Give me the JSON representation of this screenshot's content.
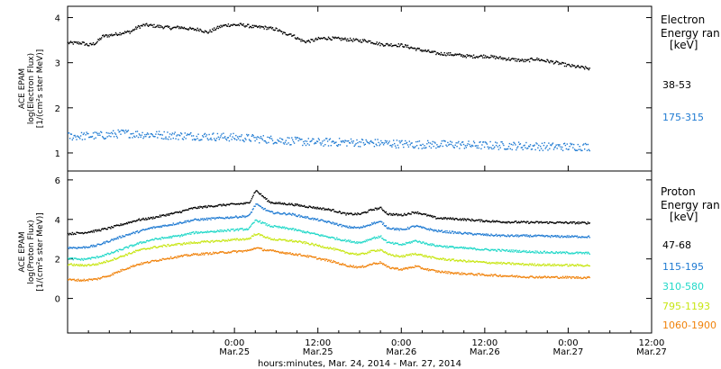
{
  "chart_data": [
    {
      "type": "scatter",
      "panel": "electron",
      "ylabel_lines": [
        "ACE EPAM",
        "log(Electron Flux)",
        "[1/(cm²s ster MeV)]"
      ],
      "ylim": [
        0.6,
        4.25
      ],
      "yticks": [
        1,
        2,
        3,
        4
      ],
      "legend_title": [
        "Electron",
        "Energy ran",
        "[keV]"
      ],
      "x_hours_since_mar24_0000": [
        0,
        84
      ],
      "series": [
        {
          "name": "38-53",
          "color": "#000000",
          "t_start_h": 0,
          "t_end_h": 75,
          "knots": [
            [
              0,
              3.45
            ],
            [
              2,
              3.45
            ],
            [
              3,
              3.4
            ],
            [
              4,
              3.45
            ],
            [
              5,
              3.6
            ],
            [
              6,
              3.62
            ],
            [
              8,
              3.68
            ],
            [
              9,
              3.7
            ],
            [
              10,
              3.8
            ],
            [
              11,
              3.85
            ],
            [
              14,
              3.8
            ],
            [
              15,
              3.78
            ],
            [
              16,
              3.8
            ],
            [
              18,
              3.75
            ],
            [
              19,
              3.75
            ],
            [
              20,
              3.68
            ],
            [
              21,
              3.75
            ],
            [
              22,
              3.82
            ],
            [
              23,
              3.85
            ],
            [
              25,
              3.85
            ],
            [
              27,
              3.8
            ],
            [
              28,
              3.8
            ],
            [
              30,
              3.75
            ],
            [
              31,
              3.66
            ],
            [
              32,
              3.65
            ],
            [
              33,
              3.55
            ],
            [
              34,
              3.48
            ],
            [
              35,
              3.5
            ],
            [
              36,
              3.54
            ],
            [
              37,
              3.56
            ],
            [
              40,
              3.53
            ],
            [
              42,
              3.5
            ],
            [
              43,
              3.5
            ],
            [
              45,
              3.42
            ],
            [
              48,
              3.4
            ],
            [
              50,
              3.32
            ],
            [
              53,
              3.22
            ],
            [
              55,
              3.2
            ],
            [
              58,
              3.15
            ],
            [
              60,
              3.16
            ],
            [
              63,
              3.1
            ],
            [
              66,
              3.05
            ],
            [
              67,
              3.1
            ],
            [
              70,
              3.02
            ],
            [
              72,
              2.95
            ],
            [
              75,
              2.88
            ]
          ],
          "scatter": 0.035
        },
        {
          "name": "175-315",
          "color": "#1e7ad2",
          "t_start_h": 0,
          "t_end_h": 75,
          "knots": [
            [
              0,
              1.38
            ],
            [
              5,
              1.4
            ],
            [
              8,
              1.45
            ],
            [
              10,
              1.43
            ],
            [
              15,
              1.4
            ],
            [
              20,
              1.38
            ],
            [
              25,
              1.35
            ],
            [
              30,
              1.3
            ],
            [
              35,
              1.25
            ],
            [
              40,
              1.25
            ],
            [
              45,
              1.23
            ],
            [
              50,
              1.2
            ],
            [
              55,
              1.2
            ],
            [
              60,
              1.18
            ],
            [
              65,
              1.17
            ],
            [
              70,
              1.15
            ],
            [
              75,
              1.15
            ]
          ],
          "scatter": 0.09
        }
      ]
    },
    {
      "type": "scatter",
      "panel": "proton",
      "ylabel_lines": [
        "ACE EPAM",
        "log(Proton Flux)",
        "[1/(cm²s ster MeV)]"
      ],
      "ylim": [
        -1.75,
        6.45
      ],
      "yticks": [
        0,
        2,
        4,
        6
      ],
      "legend_title": [
        "Proton",
        "Energy ran",
        "[keV]"
      ],
      "xtick_labels": [
        [
          "0:00",
          "Mar.25"
        ],
        [
          "12:00",
          "Mar.25"
        ],
        [
          "0:00",
          "Mar.26"
        ],
        [
          "12:00",
          "Mar.26"
        ],
        [
          "0:00",
          "Mar.27"
        ],
        [
          "12:00",
          "Mar.27"
        ]
      ],
      "xtick_hours": [
        24,
        36,
        48,
        60,
        72,
        84
      ],
      "xlabel": "hours:minutes, Mar. 24, 2014 - Mar. 27, 2014",
      "x_hours_since_mar24_0000": [
        0,
        84
      ],
      "series": [
        {
          "name": "47-68",
          "color": "#000000",
          "t_start_h": 0,
          "t_end_h": 75,
          "knots": [
            [
              0,
              3.3
            ],
            [
              2,
              3.35
            ],
            [
              4,
              3.45
            ],
            [
              6,
              3.6
            ],
            [
              8,
              3.8
            ],
            [
              10,
              4.0
            ],
            [
              12,
              4.1
            ],
            [
              14,
              4.25
            ],
            [
              16,
              4.4
            ],
            [
              18,
              4.6
            ],
            [
              20,
              4.68
            ],
            [
              22,
              4.75
            ],
            [
              24,
              4.8
            ],
            [
              26,
              4.85
            ],
            [
              27,
              5.5
            ],
            [
              28,
              5.2
            ],
            [
              29,
              4.9
            ],
            [
              30,
              4.85
            ],
            [
              32,
              4.8
            ],
            [
              34,
              4.7
            ],
            [
              36,
              4.6
            ],
            [
              38,
              4.5
            ],
            [
              40,
              4.3
            ],
            [
              42,
              4.3
            ],
            [
              44,
              4.55
            ],
            [
              45,
              4.6
            ],
            [
              46,
              4.3
            ],
            [
              48,
              4.25
            ],
            [
              50,
              4.4
            ],
            [
              51,
              4.3
            ],
            [
              53,
              4.1
            ],
            [
              56,
              4.05
            ],
            [
              60,
              3.95
            ],
            [
              63,
              3.9
            ],
            [
              66,
              3.88
            ],
            [
              70,
              3.87
            ],
            [
              75,
              3.85
            ]
          ],
          "scatter": 0.05
        },
        {
          "name": "115-195",
          "color": "#1e7ad2",
          "t_start_h": 0,
          "t_end_h": 75,
          "knots": [
            [
              0,
              2.6
            ],
            [
              2,
              2.6
            ],
            [
              4,
              2.7
            ],
            [
              6,
              2.95
            ],
            [
              8,
              3.2
            ],
            [
              10,
              3.4
            ],
            [
              12,
              3.6
            ],
            [
              14,
              3.72
            ],
            [
              16,
              3.85
            ],
            [
              18,
              4.0
            ],
            [
              20,
              4.05
            ],
            [
              22,
              4.1
            ],
            [
              24,
              4.15
            ],
            [
              26,
              4.2
            ],
            [
              27,
              4.8
            ],
            [
              28,
              4.6
            ],
            [
              29,
              4.4
            ],
            [
              30,
              4.35
            ],
            [
              32,
              4.3
            ],
            [
              34,
              4.15
            ],
            [
              36,
              4.0
            ],
            [
              38,
              3.85
            ],
            [
              40,
              3.65
            ],
            [
              42,
              3.6
            ],
            [
              44,
              3.85
            ],
            [
              45,
              3.9
            ],
            [
              46,
              3.6
            ],
            [
              48,
              3.5
            ],
            [
              50,
              3.7
            ],
            [
              51,
              3.6
            ],
            [
              53,
              3.45
            ],
            [
              56,
              3.35
            ],
            [
              60,
              3.25
            ],
            [
              63,
              3.2
            ],
            [
              66,
              3.2
            ],
            [
              70,
              3.17
            ],
            [
              75,
              3.15
            ]
          ],
          "scatter": 0.05
        },
        {
          "name": "310-580",
          "color": "#20d8c8",
          "t_start_h": 0,
          "t_end_h": 75,
          "knots": [
            [
              0,
              2.05
            ],
            [
              2,
              2.0
            ],
            [
              4,
              2.1
            ],
            [
              6,
              2.3
            ],
            [
              8,
              2.55
            ],
            [
              10,
              2.8
            ],
            [
              12,
              3.0
            ],
            [
              14,
              3.1
            ],
            [
              16,
              3.2
            ],
            [
              18,
              3.35
            ],
            [
              20,
              3.4
            ],
            [
              22,
              3.45
            ],
            [
              24,
              3.5
            ],
            [
              26,
              3.55
            ],
            [
              27,
              4.0
            ],
            [
              28,
              3.85
            ],
            [
              29,
              3.7
            ],
            [
              30,
              3.65
            ],
            [
              32,
              3.55
            ],
            [
              34,
              3.4
            ],
            [
              36,
              3.25
            ],
            [
              38,
              3.1
            ],
            [
              40,
              2.95
            ],
            [
              42,
              2.85
            ],
            [
              44,
              3.1
            ],
            [
              45,
              3.15
            ],
            [
              46,
              2.85
            ],
            [
              48,
              2.75
            ],
            [
              50,
              2.95
            ],
            [
              51,
              2.85
            ],
            [
              53,
              2.7
            ],
            [
              56,
              2.6
            ],
            [
              60,
              2.5
            ],
            [
              63,
              2.45
            ],
            [
              66,
              2.4
            ],
            [
              70,
              2.35
            ],
            [
              75,
              2.32
            ]
          ],
          "scatter": 0.05
        },
        {
          "name": "795-1193",
          "color": "#c8e614",
          "t_start_h": 0,
          "t_end_h": 75,
          "knots": [
            [
              0,
              1.75
            ],
            [
              2,
              1.7
            ],
            [
              4,
              1.75
            ],
            [
              6,
              1.95
            ],
            [
              8,
              2.2
            ],
            [
              10,
              2.45
            ],
            [
              12,
              2.6
            ],
            [
              14,
              2.7
            ],
            [
              16,
              2.78
            ],
            [
              18,
              2.85
            ],
            [
              20,
              2.9
            ],
            [
              22,
              2.95
            ],
            [
              24,
              3.0
            ],
            [
              26,
              3.05
            ],
            [
              27,
              3.3
            ],
            [
              28,
              3.2
            ],
            [
              29,
              3.05
            ],
            [
              30,
              3.0
            ],
            [
              32,
              2.95
            ],
            [
              34,
              2.85
            ],
            [
              36,
              2.7
            ],
            [
              38,
              2.55
            ],
            [
              40,
              2.35
            ],
            [
              42,
              2.25
            ],
            [
              44,
              2.45
            ],
            [
              45,
              2.5
            ],
            [
              46,
              2.25
            ],
            [
              48,
              2.15
            ],
            [
              50,
              2.3
            ],
            [
              51,
              2.2
            ],
            [
              53,
              2.05
            ],
            [
              56,
              1.95
            ],
            [
              60,
              1.85
            ],
            [
              63,
              1.8
            ],
            [
              66,
              1.75
            ],
            [
              70,
              1.72
            ],
            [
              75,
              1.7
            ]
          ],
          "scatter": 0.05
        },
        {
          "name": "1060-1900",
          "color": "#f0820a",
          "t_start_h": 0,
          "t_end_h": 75,
          "knots": [
            [
              0,
              0.98
            ],
            [
              2,
              0.95
            ],
            [
              4,
              1.0
            ],
            [
              6,
              1.2
            ],
            [
              8,
              1.5
            ],
            [
              10,
              1.75
            ],
            [
              12,
              1.9
            ],
            [
              14,
              2.05
            ],
            [
              16,
              2.15
            ],
            [
              18,
              2.25
            ],
            [
              20,
              2.3
            ],
            [
              22,
              2.35
            ],
            [
              24,
              2.4
            ],
            [
              26,
              2.45
            ],
            [
              27,
              2.6
            ],
            [
              28,
              2.5
            ],
            [
              29,
              2.45
            ],
            [
              30,
              2.4
            ],
            [
              32,
              2.3
            ],
            [
              34,
              2.2
            ],
            [
              36,
              2.05
            ],
            [
              38,
              1.9
            ],
            [
              40,
              1.7
            ],
            [
              42,
              1.6
            ],
            [
              44,
              1.8
            ],
            [
              45,
              1.85
            ],
            [
              46,
              1.6
            ],
            [
              48,
              1.5
            ],
            [
              50,
              1.65
            ],
            [
              51,
              1.55
            ],
            [
              53,
              1.4
            ],
            [
              56,
              1.3
            ],
            [
              60,
              1.22
            ],
            [
              63,
              1.17
            ],
            [
              66,
              1.12
            ],
            [
              70,
              1.1
            ],
            [
              75,
              1.08
            ]
          ],
          "scatter": 0.05
        }
      ]
    }
  ]
}
